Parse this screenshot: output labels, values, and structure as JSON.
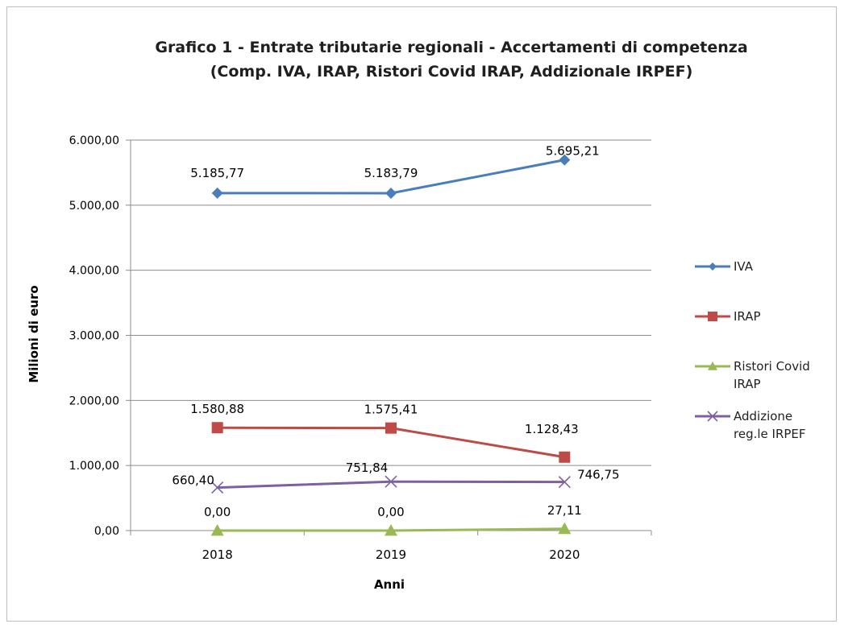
{
  "chart_data": {
    "type": "line",
    "title": "Grafico 1 - Entrate tributarie regionali - Accertamenti di competenza",
    "subtitle": "(Comp. IVA, IRAP, Ristori Covid IRAP, Addizionale IRPEF)",
    "xlabel": "Anni",
    "ylabel": "Milioni di euro",
    "categories": [
      "2018",
      "2019",
      "2020"
    ],
    "ylim": [
      0,
      6000
    ],
    "yticks": [
      {
        "value": 0,
        "label": "0,00"
      },
      {
        "value": 1000,
        "label": "1.000,00"
      },
      {
        "value": 2000,
        "label": "2.000,00"
      },
      {
        "value": 3000,
        "label": "3.000,00"
      },
      {
        "value": 4000,
        "label": "4.000,00"
      },
      {
        "value": 5000,
        "label": "5.000,00"
      },
      {
        "value": 6000,
        "label": "6.000,00"
      }
    ],
    "grid": true,
    "legend_position": "right",
    "series": [
      {
        "name": "IVA",
        "color": "#4a7ebb",
        "marker": "diamond",
        "values": [
          5185.77,
          5183.79,
          5695.21
        ],
        "labels": [
          "5.185,77",
          "5.183,79",
          "5.695,21"
        ]
      },
      {
        "name": "IRAP",
        "color": "#be4b48",
        "marker": "square",
        "values": [
          1580.88,
          1575.41,
          1128.43
        ],
        "labels": [
          "1.580,88",
          "1.575,41",
          "1.128,43"
        ]
      },
      {
        "name": "Ristori Covid IRAP",
        "color": "#98b954",
        "marker": "triangle",
        "values": [
          0,
          0,
          27.11
        ],
        "labels": [
          "0,00",
          "0,00",
          "27,11"
        ]
      },
      {
        "name": "Addizione reg.le IRPEF",
        "color": "#7d60a0",
        "marker": "x",
        "values": [
          660.4,
          751.84,
          746.75
        ],
        "labels": [
          "660,40",
          "751,84",
          "746,75"
        ]
      }
    ],
    "legend_labels": [
      [
        "IVA"
      ],
      [
        "IRAP"
      ],
      [
        "Ristori Covid",
        "IRAP"
      ],
      [
        "Addizione",
        "reg.le IRPEF"
      ]
    ]
  }
}
